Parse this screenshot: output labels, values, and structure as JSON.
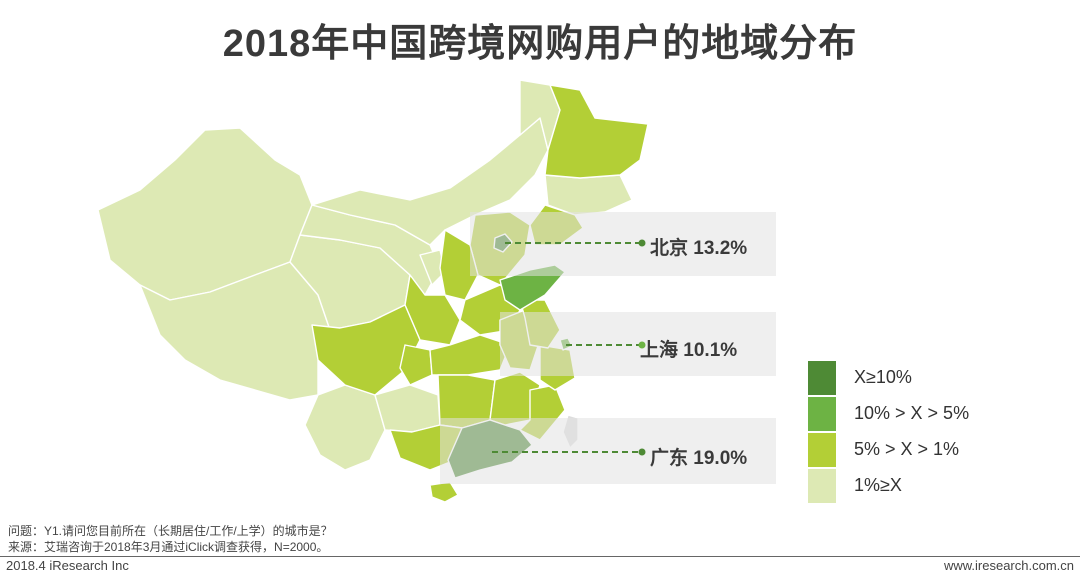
{
  "title": "2018年中国跨境网购用户的地域分布",
  "colors": {
    "level1": "#4e8a35",
    "level2": "#6db344",
    "level3": "#b3cf36",
    "level4": "#dde9b4",
    "callout": "#4e8a35"
  },
  "callouts": [
    {
      "label": "北京 13.2%",
      "region": "北京",
      "value": 13.2
    },
    {
      "label": "上海  10.1%",
      "region": "上海",
      "value": 10.1
    },
    {
      "label": "广东 19.0%",
      "region": "广东",
      "value": 19.0
    }
  ],
  "legend": [
    {
      "label": "X≥10%",
      "color": "#4e8a35"
    },
    {
      "label": "10% > X > 5%",
      "color": "#6db344"
    },
    {
      "label": "5% > X > 1%",
      "color": "#b3cf36"
    },
    {
      "label": "1%≥X",
      "color": "#dde9b4"
    }
  ],
  "footnotes": {
    "question": "问题：Y1.请问您目前所在（长期居住/工作/上学）的城市是？",
    "source": "来源：艾瑞咨询于2018年3月通过iClick调查获得，N=2000。"
  },
  "footer": {
    "left": "2018.4 iResearch Inc",
    "right": "www.iresearch.com.cn"
  }
}
